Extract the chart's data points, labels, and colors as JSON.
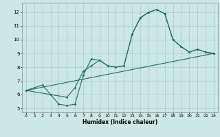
{
  "xlabel": "Humidex (Indice chaleur)",
  "bg_color": "#cce8e5",
  "grid_color": "#aaccca",
  "line_color": "#1a6b5e",
  "xlim": [
    -0.5,
    23.5
  ],
  "ylim": [
    4.7,
    12.7
  ],
  "xticks": [
    0,
    1,
    2,
    3,
    4,
    5,
    6,
    7,
    8,
    9,
    10,
    11,
    12,
    13,
    14,
    15,
    16,
    17,
    18,
    19,
    20,
    21,
    22,
    23
  ],
  "yticks": [
    5,
    6,
    7,
    8,
    9,
    10,
    11,
    12
  ],
  "line1_x": [
    0,
    2,
    3,
    4,
    5,
    6,
    7,
    8,
    9,
    10,
    11,
    12,
    13,
    14,
    15,
    16,
    17,
    18,
    19,
    20,
    21,
    22,
    23
  ],
  "line1_y": [
    6.3,
    6.7,
    6.0,
    5.3,
    5.2,
    5.3,
    7.4,
    8.6,
    8.5,
    8.1,
    8.0,
    8.1,
    10.4,
    11.6,
    12.0,
    12.2,
    11.9,
    10.0,
    9.5,
    9.1,
    9.3,
    9.1,
    9.0
  ],
  "line2_x": [
    0,
    23
  ],
  "line2_y": [
    6.3,
    9.0
  ],
  "line3_x": [
    0,
    3,
    5,
    6,
    7,
    8,
    9,
    10,
    11,
    12,
    13,
    14,
    15,
    16,
    17,
    18,
    19,
    20,
    21,
    22,
    23
  ],
  "line3_y": [
    6.3,
    6.0,
    5.8,
    6.5,
    7.7,
    8.1,
    8.5,
    8.1,
    8.0,
    8.1,
    10.4,
    11.6,
    12.0,
    12.2,
    11.9,
    10.0,
    9.5,
    9.1,
    9.3,
    9.1,
    9.0
  ]
}
